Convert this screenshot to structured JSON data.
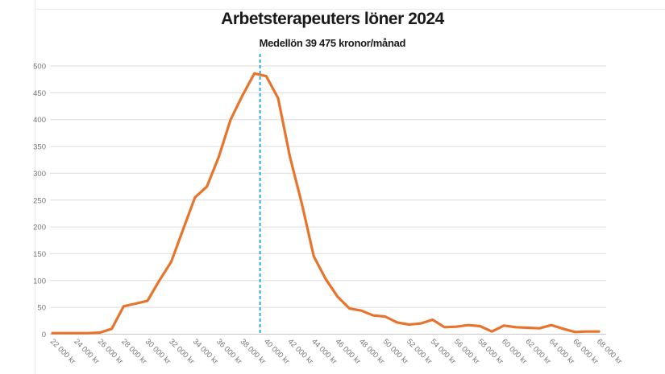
{
  "title": "Arbetsterapeuters löner 2024",
  "subtitle": "Medellön 39 475 kronor/månad",
  "colors": {
    "series": "#E8742C",
    "mean_line": "#29ABE2",
    "grid": "#DCDCDC",
    "axis": "#C9C9C9",
    "tick_label": "#757575",
    "title_text": "#1A1A1A"
  },
  "chart_data": {
    "type": "line",
    "title": "Arbetsterapeuters löner 2024",
    "annotation": "Medellön 39 475 kronor/månad",
    "mean_value": 39475,
    "x_min": 22000,
    "x_max": 68000,
    "x_step": 1000,
    "ylim": [
      0,
      500
    ],
    "y_ticks": [
      0,
      50,
      100,
      150,
      200,
      250,
      300,
      350,
      400,
      450,
      500
    ],
    "grid": "horizontal",
    "legend": "none",
    "x": [
      22000,
      23000,
      24000,
      25000,
      26000,
      27000,
      28000,
      29000,
      30000,
      31000,
      32000,
      33000,
      34000,
      35000,
      36000,
      37000,
      38000,
      39000,
      40000,
      41000,
      42000,
      43000,
      44000,
      45000,
      46000,
      47000,
      48000,
      49000,
      50000,
      51000,
      52000,
      53000,
      54000,
      55000,
      56000,
      57000,
      58000,
      59000,
      60000,
      61000,
      62000,
      63000,
      64000,
      65000,
      66000,
      67000,
      68000
    ],
    "values": [
      2,
      2,
      2,
      2,
      3,
      10,
      52,
      57,
      62,
      100,
      135,
      195,
      255,
      275,
      330,
      400,
      445,
      486,
      481,
      440,
      330,
      243,
      145,
      103,
      70,
      48,
      44,
      35,
      33,
      22,
      18,
      20,
      27,
      13,
      14,
      17,
      15,
      5,
      16,
      13,
      12,
      11,
      17,
      10,
      4,
      5,
      5
    ],
    "x_tick_labels": [
      "22 000 kr",
      "24 000 kr",
      "26 000 kr",
      "28 000 kr",
      "30 000 kr",
      "32 000 kr",
      "34 000 kr",
      "36 000 kr",
      "38 000 kr",
      "40 000 kr",
      "42 000 kr",
      "44 000 kr",
      "46 000 kr",
      "48 000 kr",
      "50 000 kr",
      "52 000 kr",
      "54 000 kr",
      "56 000 kr",
      "58 000 kr",
      "60 000 kr",
      "62 000 kr",
      "64 000 kr",
      "66 000 kr",
      "68 000 kr"
    ]
  }
}
